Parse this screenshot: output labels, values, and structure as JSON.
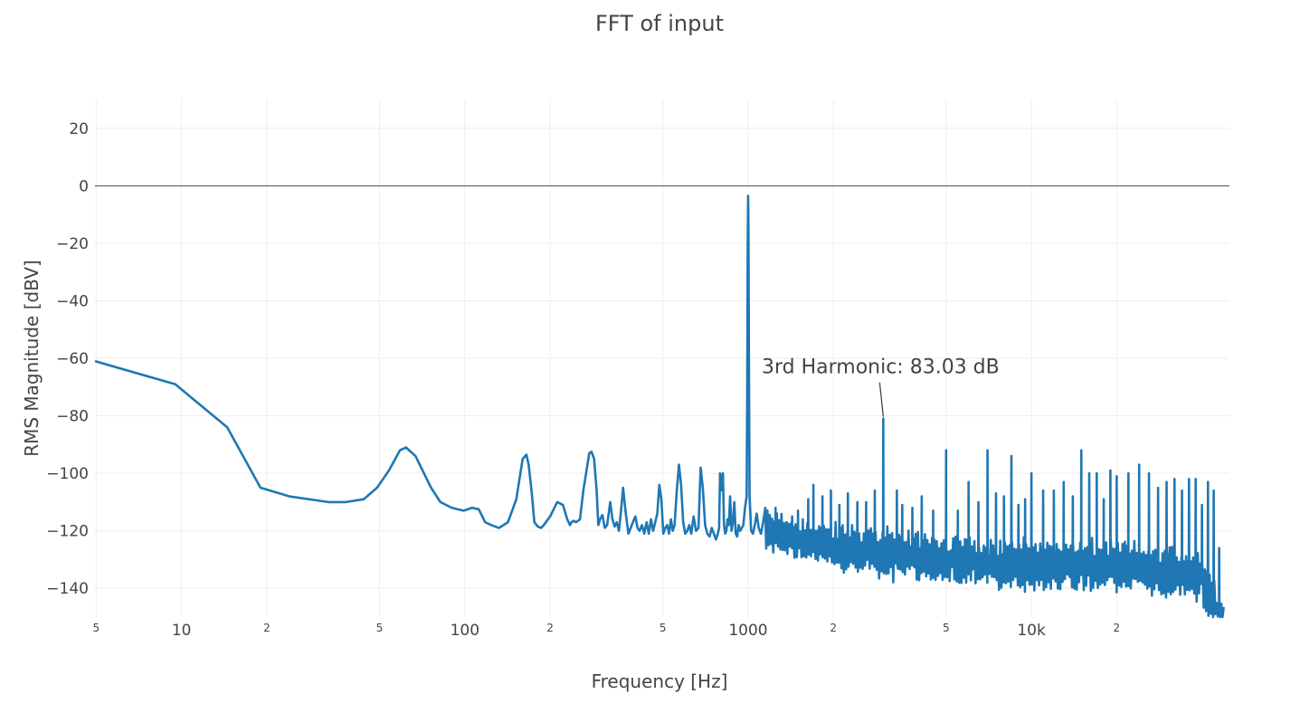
{
  "chart_data": {
    "type": "line",
    "title": "FFT of input",
    "xlabel": "Frequency [Hz]",
    "ylabel": "RMS Magnitude [dBV]",
    "xscale": "log",
    "xlim": [
      4.95,
      50000
    ],
    "ylim": [
      -150,
      30
    ],
    "grid": true,
    "legend": "none",
    "colors": {
      "line": "#1f77b4",
      "text": "#444444",
      "grid": "#eeeeee",
      "zeroline": "#444444"
    },
    "x_ticks_major": [
      {
        "value": 10,
        "label": "10"
      },
      {
        "value": 100,
        "label": "100"
      },
      {
        "value": 1000,
        "label": "1000"
      },
      {
        "value": 10000,
        "label": "10k"
      }
    ],
    "x_ticks_minor": [
      {
        "value": 5,
        "label": "5"
      },
      {
        "value": 20,
        "label": "2"
      },
      {
        "value": 50,
        "label": "5"
      },
      {
        "value": 200,
        "label": "2"
      },
      {
        "value": 500,
        "label": "5"
      },
      {
        "value": 2000,
        "label": "2"
      },
      {
        "value": 5000,
        "label": "5"
      },
      {
        "value": 20000,
        "label": "2"
      }
    ],
    "y_ticks": [
      20,
      0,
      -20,
      -40,
      -60,
      -80,
      -100,
      -120,
      -140
    ],
    "y_tick_labels": [
      "20",
      "0",
      "−20",
      "−40",
      "−60",
      "−80",
      "−100",
      "−120",
      "−140"
    ],
    "series": [
      {
        "color": "#1f77b4",
        "x": [
          4.95,
          9.5,
          14.5,
          19,
          24,
          33,
          38,
          44,
          49,
          54,
          59,
          62,
          67,
          76,
          82,
          90,
          99,
          106,
          112,
          118,
          124,
          132,
          142,
          152,
          160,
          165,
          168,
          172,
          176,
          181,
          186,
          190,
          200,
          212,
          222,
          230,
          235,
          238,
          242,
          247,
          255,
          262,
          275,
          280,
          286,
          292,
          296,
          300,
          306,
          312,
          318,
          326,
          332,
          338,
          344,
          350,
          356,
          362,
          370,
          378,
          385,
          392,
          400,
          407,
          414,
          422,
          430,
          438,
          446,
          454,
          462,
          470,
          478,
          486,
          494,
          502,
          510,
          518,
          526,
          534,
          542,
          550,
          560,
          570,
          580,
          590,
          600,
          610,
          620,
          630,
          642,
          655,
          668,
          680,
          692,
          705,
          718,
          731,
          744,
          757,
          770,
          782,
          790,
          796,
          802,
          808,
          815,
          822,
          830,
          838,
          846,
          855,
          864,
          874,
          884,
          894,
          904,
          915,
          926,
          938,
          950,
          962,
          975,
          988,
          993,
          997,
          1000,
          1003,
          1007,
          1012,
          1025,
          1040,
          1056,
          1072,
          1090,
          1110,
          1130,
          1150
        ],
        "values": [
          -61,
          -69,
          -84,
          -105,
          -108,
          -110,
          -110,
          -109,
          -105,
          -99,
          -92,
          -91,
          -94,
          -105,
          -110,
          -112,
          -113,
          -112,
          -112.5,
          -117,
          -118,
          -119,
          -117,
          -109,
          -95,
          -93.5,
          -97,
          -106,
          -117,
          -118.5,
          -119,
          -118,
          -115,
          -110,
          -111,
          -116,
          -118,
          -117,
          -116.5,
          -117,
          -116,
          -106,
          -93,
          -92.5,
          -95,
          -106,
          -118,
          -116,
          -114.5,
          -119,
          -118,
          -110,
          -116,
          -118.5,
          -117,
          -120,
          -113,
          -105,
          -114,
          -121,
          -119,
          -117,
          -115,
          -119,
          -120,
          -118,
          -121,
          -117,
          -121,
          -116,
          -120,
          -117,
          -114,
          -104,
          -109,
          -121,
          -119,
          -118,
          -121,
          -116,
          -120,
          -118,
          -106,
          -97,
          -104,
          -117,
          -121,
          -120,
          -118,
          -121,
          -115,
          -120,
          -119,
          -98,
          -105,
          -118,
          -121,
          -122,
          -119,
          -121,
          -123,
          -121,
          -119,
          -100,
          -101,
          -106,
          -100,
          -118,
          -121,
          -120,
          -116,
          -118,
          -108,
          -120,
          -117,
          -110,
          -121,
          -122,
          -118,
          -120,
          -119,
          -118,
          -112,
          -108,
          -70,
          -20,
          -3.5,
          -15,
          -65,
          -108,
          -120,
          -121,
          -118,
          -114,
          -119,
          -121,
          -117,
          -112
        ],
        "noise_start_hz": 1150,
        "noise_baseline": [
          [
            1150,
            -120
          ],
          [
            2000,
            -126
          ],
          [
            5000,
            -130
          ],
          [
            10000,
            -132
          ],
          [
            20000,
            -132
          ],
          [
            40000,
            -136
          ],
          [
            48000,
            -150
          ]
        ],
        "spurs_hz": [
          1180,
          1250,
          1300,
          1370,
          1430,
          1500,
          1560,
          1630,
          1700,
          1830,
          1960,
          2100,
          2250,
          2430,
          2610,
          2800,
          3000,
          3350,
          3500,
          3800,
          4100,
          4500,
          5000,
          5500,
          6000,
          6500,
          7000,
          7500,
          8000,
          8500,
          9000,
          9500,
          10000,
          11000,
          12000,
          13000,
          14000,
          15000,
          16000,
          17000,
          18000,
          19000,
          20000,
          22000,
          24000,
          26000,
          28000,
          30000,
          32000,
          34000,
          36000,
          38000,
          40000,
          42000,
          44000,
          46000
        ],
        "spurs_db": [
          -117,
          -112,
          -118,
          -117,
          -115,
          -113,
          -116,
          -109,
          -104,
          -108,
          -106,
          -111,
          -107,
          -110,
          -110,
          -106,
          -81,
          -106,
          -111,
          -112,
          -108,
          -113,
          -92,
          -113,
          -103,
          -110,
          -92,
          -107,
          -108,
          -94,
          -111,
          -109,
          -100,
          -106,
          -106,
          -103,
          -108,
          -92,
          -100,
          -100,
          -109,
          -99,
          -101,
          -100,
          -97,
          -100,
          -105,
          -103,
          -102,
          -106,
          -102,
          -102,
          -111,
          -103,
          -106,
          -126
        ]
      }
    ],
    "annotations": [
      {
        "text": "3rd Harmonic: 83.03 dB",
        "x": 3000,
        "y": -81
      }
    ]
  }
}
